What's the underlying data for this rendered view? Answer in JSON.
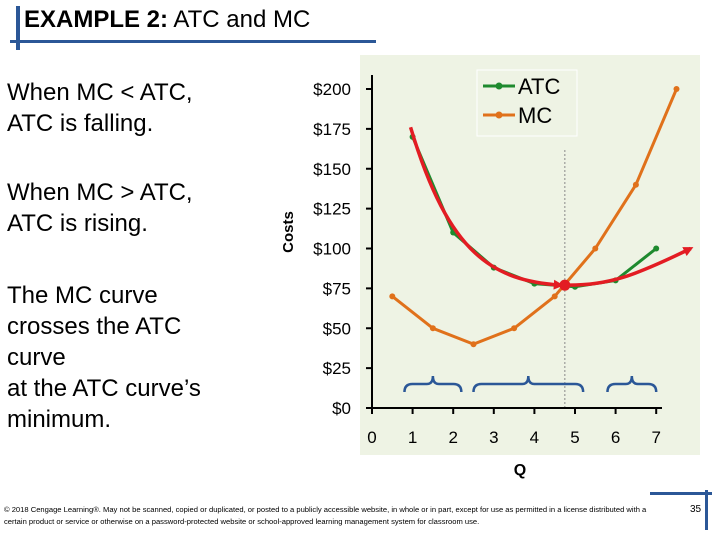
{
  "title": {
    "prefix": "EXAMPLE 2:",
    "text": "ATC and MC"
  },
  "notes": [
    {
      "lines": [
        "When MC < ATC,",
        "ATC is falling."
      ]
    },
    {
      "lines": [
        "When MC > ATC,",
        "ATC is rising."
      ]
    },
    {
      "lines": [
        "The MC curve",
        "crosses the ATC",
        "curve",
        "at the ATC curve’s",
        "minimum."
      ]
    }
  ],
  "footer": "© 2018 Cengage Learning®. May not be scanned, copied or duplicated, or posted to a publicly accessible website, in whole or in part, except for use as permitted in a license distributed with a certain product or service or otherwise on a password-protected website or school-approved learning management system for classroom use.",
  "page_number": "35",
  "colors": {
    "atc": "#1e8a2e",
    "mc": "#e0711b",
    "highlight": "#e31c23",
    "brace": "#2b5797",
    "dash": "#888888",
    "bg": "#eef3e4",
    "accent": "#2b5797"
  },
  "chart_data": {
    "type": "line",
    "xlabel": "Q",
    "ylabel": "Costs",
    "xlim": [
      0,
      7
    ],
    "ylim": [
      0,
      200
    ],
    "x_ticks": [
      "0",
      "1",
      "2",
      "3",
      "4",
      "5",
      "6",
      "7"
    ],
    "y_ticks": [
      "$0",
      "$25",
      "$50",
      "$75",
      "$100",
      "$125",
      "$150",
      "$175",
      "$200"
    ],
    "y_tick_values": [
      0,
      25,
      50,
      75,
      100,
      125,
      150,
      175,
      200
    ],
    "series": [
      {
        "name": "ATC",
        "color": "#1e8a2e",
        "x": [
          1,
          2,
          3,
          4,
          5,
          6,
          7
        ],
        "y": [
          170,
          110,
          88,
          78,
          76,
          80,
          100
        ]
      },
      {
        "name": "MC",
        "color": "#e0711b",
        "x": [
          0.5,
          1.5,
          2.5,
          3.5,
          4.5,
          5.5,
          6.5,
          7.5
        ],
        "y": [
          70,
          50,
          40,
          50,
          70,
          100,
          140,
          200
        ]
      }
    ],
    "highlight_point": {
      "x": 4.75,
      "y": 77
    },
    "braces": [
      [
        0.8,
        2.2
      ],
      [
        2.5,
        5.2
      ],
      [
        5.8,
        7
      ]
    ],
    "legend": "top-right"
  }
}
